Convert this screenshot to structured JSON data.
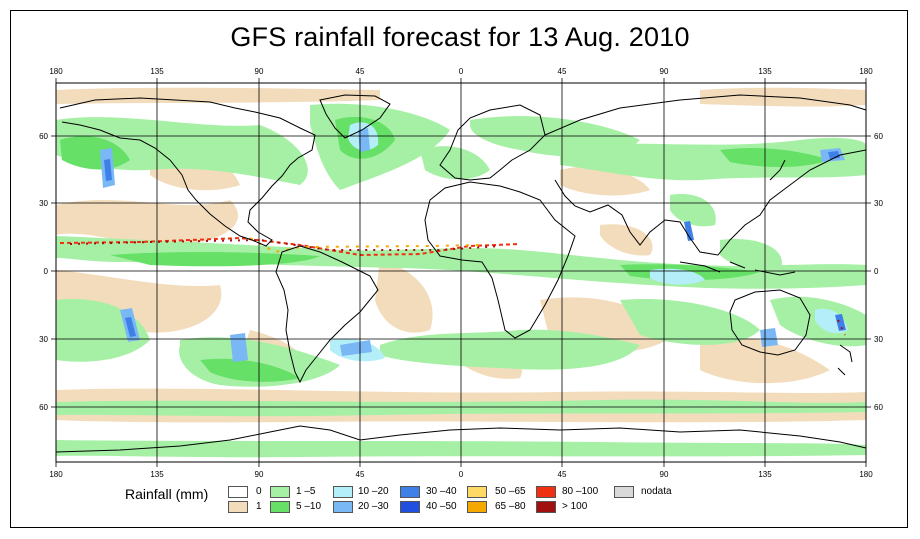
{
  "title": "GFS rainfall forecast for 13 Aug. 2010",
  "axes": {
    "lon_ticks_top": [
      "180",
      "135",
      "90",
      "45",
      "0",
      "45",
      "90",
      "135",
      "180"
    ],
    "lon_ticks_bottom": [
      "180",
      "135",
      "90",
      "45",
      "0",
      "45",
      "90",
      "135",
      "180"
    ],
    "lat_ticks_left": [
      "60",
      "30",
      "0",
      "30",
      "60"
    ],
    "lat_ticks_right": [
      "60",
      "30",
      "0",
      "30",
      "60"
    ]
  },
  "legend": {
    "title": "Rainfall (mm)",
    "items": [
      {
        "label": "0",
        "color": "#ffffff"
      },
      {
        "label": "1",
        "color": "#f2dcbb"
      },
      {
        "label": "1 –5",
        "color": "#a6f0a6"
      },
      {
        "label": "5 –10",
        "color": "#66e066"
      },
      {
        "label": "10 –20",
        "color": "#b4eef8"
      },
      {
        "label": "20 –30",
        "color": "#7ab8f5"
      },
      {
        "label": "30 –40",
        "color": "#3f7fe8"
      },
      {
        "label": "40 –50",
        "color": "#1f50e0"
      },
      {
        "label": "50 –65",
        "color": "#ffd966"
      },
      {
        "label": "65 –80",
        "color": "#f5a800"
      },
      {
        "label": "80 –100",
        "color": "#f03010"
      },
      {
        "label": "> 100",
        "color": "#a01010"
      },
      {
        "label": "nodata",
        "color": "#d9d9d9"
      }
    ]
  }
}
